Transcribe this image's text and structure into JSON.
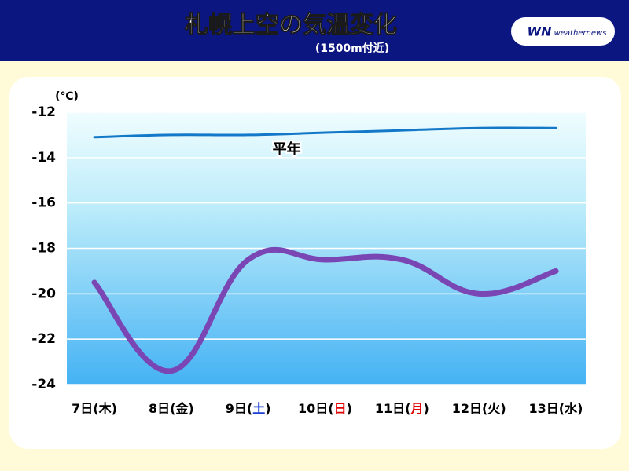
{
  "chart_data": {
    "type": "line",
    "title": "札幌上空の気温変化",
    "subtitle": "(1500m付近)",
    "unit": "(℃)",
    "logo": {
      "mark": "WN",
      "text": "weathernews"
    },
    "categories": [
      "7日(木)",
      "8日(金)",
      "9日(土)",
      "10日(日)",
      "11日(月)",
      "12日(火)",
      "13日(水)"
    ],
    "category_colors": [
      "#000000",
      "#000000",
      "#1a3fd0",
      "#e00000",
      "#e00000",
      "#000000",
      "#000000"
    ],
    "series": [
      {
        "name": "平年",
        "color": "#1478c8",
        "width": 3,
        "values": [
          -13.1,
          -13.0,
          -13.0,
          -12.9,
          -12.8,
          -12.7,
          -12.7
        ]
      },
      {
        "color": "#7a46b4",
        "width": 7,
        "values": [
          -19.5,
          -23.4,
          -18.5,
          -18.5,
          -18.5,
          -20.0,
          -19.0
        ]
      }
    ],
    "ylim": [
      -24,
      -12
    ],
    "yticks": [
      -12,
      -14,
      -16,
      -18,
      -20,
      -22,
      -24
    ],
    "grid": true
  }
}
